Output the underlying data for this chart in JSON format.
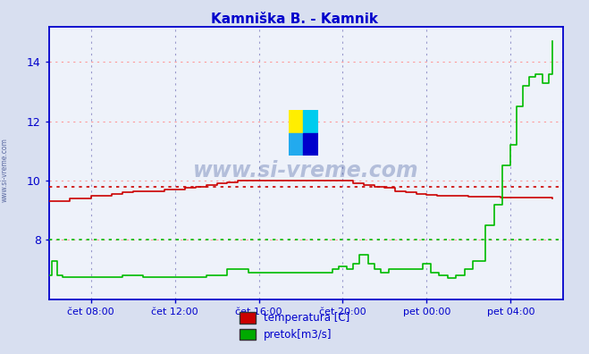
{
  "title": "Kamniška B. - Kamnik",
  "title_color": "#0000cc",
  "bg_color": "#d8dff0",
  "plot_bg_color": "#eef2fa",
  "grid_color_h": "#ff9999",
  "grid_color_v": "#9999cc",
  "axis_color": "#0000cc",
  "ylim": [
    6.0,
    15.2
  ],
  "yticks": [
    8,
    10,
    12,
    14
  ],
  "xtick_labels": [
    "čet 08:00",
    "čet 12:00",
    "čet 16:00",
    "čet 20:00",
    "pet 00:00",
    "pet 04:00"
  ],
  "xtick_positions": [
    2,
    6,
    10,
    14,
    18,
    22
  ],
  "avg_temp": 9.8,
  "avg_flow": 8.0,
  "watermark": "www.si-vreme.com",
  "watermark_color": "#1a3a8a",
  "legend_items": [
    "temperatura [C]",
    "pretok[m3/s]"
  ],
  "legend_colors": [
    "#cc0000",
    "#00aa00"
  ],
  "temp_color": "#cc0000",
  "flow_color": "#00bb00",
  "temp_x": [
    0,
    0.5,
    1,
    1.5,
    2,
    2.5,
    3,
    3.5,
    4,
    4.5,
    5,
    5.5,
    6,
    6.5,
    7,
    7.5,
    8,
    8.5,
    9,
    9.5,
    10,
    10.5,
    11,
    11.5,
    12,
    12.5,
    13,
    13.5,
    14,
    14.5,
    15,
    15.5,
    16,
    16.5,
    17,
    17.5,
    18,
    18.5,
    19,
    19.5,
    20,
    20.5,
    21,
    21.5,
    22,
    22.5,
    23,
    23.5,
    24
  ],
  "temp_y": [
    9.3,
    9.3,
    9.4,
    9.4,
    9.5,
    9.5,
    9.55,
    9.6,
    9.65,
    9.65,
    9.65,
    9.7,
    9.7,
    9.75,
    9.8,
    9.85,
    9.9,
    9.95,
    10.0,
    10.0,
    10.0,
    10.0,
    10.0,
    10.0,
    10.0,
    10.0,
    10.0,
    10.0,
    10.0,
    9.9,
    9.85,
    9.8,
    9.75,
    9.65,
    9.6,
    9.55,
    9.52,
    9.5,
    9.5,
    9.48,
    9.47,
    9.46,
    9.45,
    9.44,
    9.44,
    9.43,
    9.42,
    9.42,
    9.41
  ],
  "flow_x": [
    0,
    0.15,
    0.15,
    0.4,
    0.4,
    0.65,
    0.65,
    1.0,
    1.0,
    3.5,
    3.5,
    4.5,
    4.5,
    7.5,
    7.5,
    8.5,
    8.5,
    9.5,
    9.5,
    13.5,
    13.5,
    13.8,
    13.8,
    14.2,
    14.2,
    14.5,
    14.5,
    14.8,
    14.8,
    15.2,
    15.2,
    15.5,
    15.5,
    15.8,
    15.8,
    16.2,
    16.2,
    17.8,
    17.8,
    18.2,
    18.2,
    18.6,
    18.6,
    19.0,
    19.0,
    19.4,
    19.4,
    19.8,
    19.8,
    20.2,
    20.2,
    20.8,
    20.8,
    21.2,
    21.2,
    21.6,
    21.6,
    22.0,
    22.0,
    22.3,
    22.3,
    22.6,
    22.6,
    22.9,
    22.9,
    23.2,
    23.2,
    23.5,
    23.5,
    23.8,
    23.8,
    24.0
  ],
  "flow_y": [
    6.8,
    6.8,
    7.3,
    7.3,
    6.8,
    6.8,
    6.75,
    6.75,
    6.75,
    6.75,
    6.8,
    6.8,
    6.75,
    6.75,
    6.8,
    6.8,
    7.0,
    7.0,
    6.9,
    6.9,
    7.0,
    7.0,
    7.1,
    7.1,
    7.0,
    7.0,
    7.2,
    7.2,
    7.5,
    7.5,
    7.2,
    7.2,
    7.0,
    7.0,
    6.9,
    6.9,
    7.0,
    7.0,
    7.2,
    7.2,
    6.9,
    6.9,
    6.8,
    6.8,
    6.7,
    6.7,
    6.8,
    6.8,
    7.0,
    7.0,
    7.3,
    7.3,
    8.5,
    8.5,
    9.2,
    9.2,
    10.5,
    10.5,
    11.2,
    11.2,
    12.5,
    12.5,
    13.2,
    13.2,
    13.5,
    13.5,
    13.6,
    13.6,
    13.3,
    13.3,
    13.6,
    14.7
  ]
}
